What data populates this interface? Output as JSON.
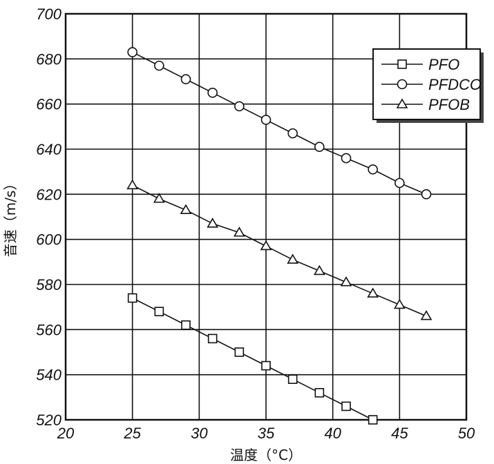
{
  "chart_data": {
    "type": "line",
    "xlabel": "温度（°C）",
    "ylabel": "音速（m/s）",
    "xlim": [
      20,
      50
    ],
    "ylim": [
      520,
      700
    ],
    "x_ticks": [
      20,
      25,
      30,
      35,
      40,
      45,
      50
    ],
    "y_ticks": [
      520,
      540,
      560,
      580,
      600,
      620,
      640,
      660,
      680,
      700
    ],
    "grid": true,
    "legend_position": "top-right",
    "series": [
      {
        "name": "PFO",
        "marker": "square",
        "x": [
          25,
          27,
          29,
          31,
          33,
          35,
          37,
          39,
          41,
          43
        ],
        "y": [
          574,
          568,
          562,
          556,
          550,
          544,
          538,
          532,
          526,
          520
        ]
      },
      {
        "name": "PFDCO",
        "marker": "circle",
        "x": [
          25,
          27,
          29,
          31,
          33,
          35,
          37,
          39,
          41,
          43,
          45,
          47
        ],
        "y": [
          683,
          677,
          671,
          665,
          659,
          653,
          647,
          641,
          636,
          631,
          625,
          620
        ]
      },
      {
        "name": "PFOB",
        "marker": "triangle",
        "x": [
          25,
          27,
          29,
          31,
          33,
          35,
          37,
          39,
          41,
          43,
          45,
          47
        ],
        "y": [
          624,
          618,
          613,
          607,
          603,
          597,
          591,
          586,
          581,
          576,
          571,
          566
        ]
      }
    ]
  }
}
